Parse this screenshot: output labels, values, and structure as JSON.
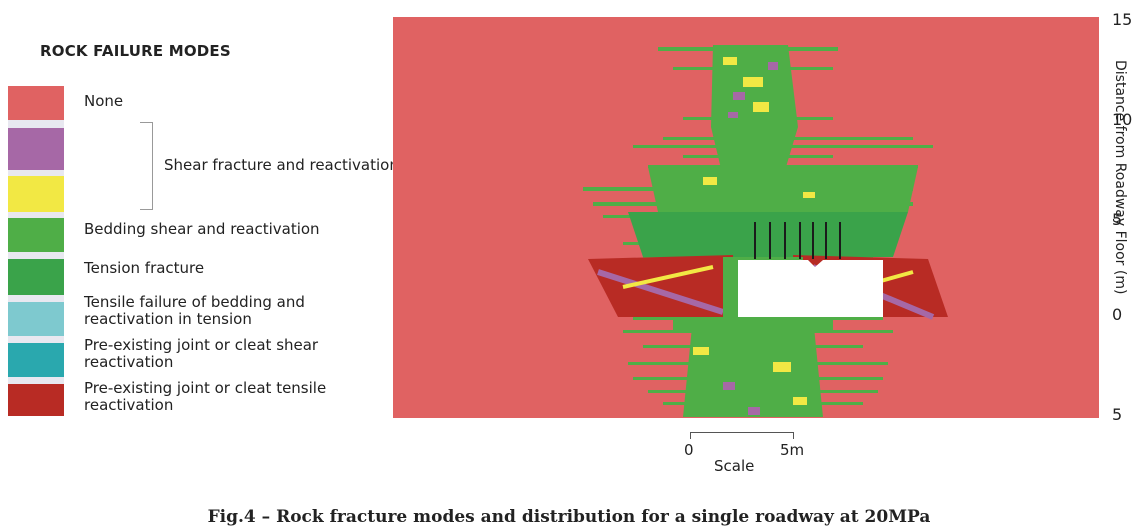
{
  "legend": {
    "title": "ROCK FAILURE MODES",
    "items": [
      {
        "label": "None",
        "colors": [
          "#e06262"
        ]
      },
      {
        "label": "Shear fracture and reactivation",
        "colors": [
          "#a668a6",
          "#f2e844"
        ]
      },
      {
        "label": "Bedding shear and reactivation",
        "colors": [
          "#4fae47"
        ]
      },
      {
        "label": "Tension fracture",
        "colors": [
          "#3aa34a"
        ]
      },
      {
        "label": "Tensile failure of bedding and reactivation in tension",
        "colors": [
          "#7ec9cf"
        ]
      },
      {
        "label": "Pre-existing joint or cleat shear reactivation",
        "colors": [
          "#2aa8ae"
        ]
      },
      {
        "label": "Pre-existing joint or cleat tensile reactivation",
        "colors": [
          "#b82b24"
        ]
      }
    ],
    "label_lines": {
      "none": "None",
      "shear": "Shear fracture and reactivation",
      "bedding": "Bedding shear and reactivation",
      "tension": "Tension fracture",
      "tensile_1": "Tensile failure of bedding and",
      "tensile_2": "reactivation in tension",
      "joint_shear_1": "Pre-existing joint or cleat shear",
      "joint_shear_2": "reactivation",
      "joint_tensile_1": "Pre-existing joint or cleat tensile",
      "joint_tensile_2": "reactivation"
    }
  },
  "axis": {
    "title": "Distance from Roadway Floor (m)",
    "ticks": [
      "15",
      "10",
      "5",
      "0",
      "5"
    ]
  },
  "scale": {
    "start": "0",
    "end": "5m",
    "label": "Scale"
  },
  "caption": "Fig.4 – Rock fracture modes and distribution for a single roadway at 20MPa",
  "colors": {
    "background": "#e06262",
    "green": "#4fae47",
    "yellow": "#f2e844",
    "purple": "#a668a6",
    "red": "#b82b24",
    "void": "#ffffff"
  }
}
